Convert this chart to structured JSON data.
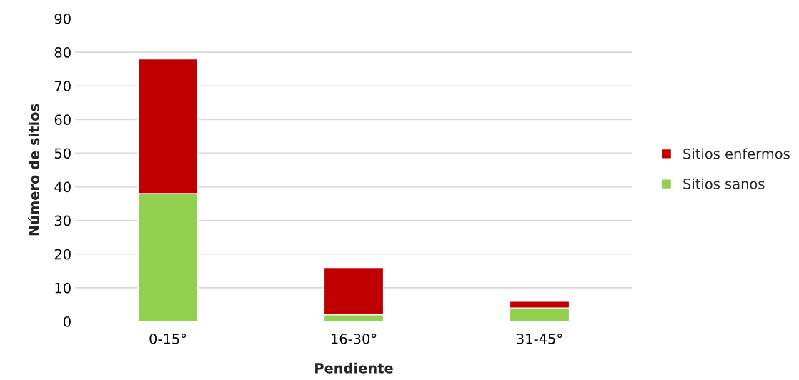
{
  "chart_data": {
    "type": "bar",
    "stacked": true,
    "xlabel": "Pendiente",
    "ylabel": "Número de sitios",
    "categories": [
      "0-15°",
      "16-30°",
      "31-45°"
    ],
    "series": [
      {
        "name": "Sitios sanos",
        "color": "#92d050",
        "values": [
          38,
          2,
          4
        ]
      },
      {
        "name": "Sitios enfermos",
        "color": "#c00000",
        "values": [
          40,
          14,
          2
        ]
      }
    ],
    "ylim": [
      0,
      90
    ],
    "yticks": [
      0,
      10,
      20,
      30,
      40,
      50,
      60,
      70,
      80,
      90
    ],
    "grid": "y",
    "legend": "right"
  }
}
